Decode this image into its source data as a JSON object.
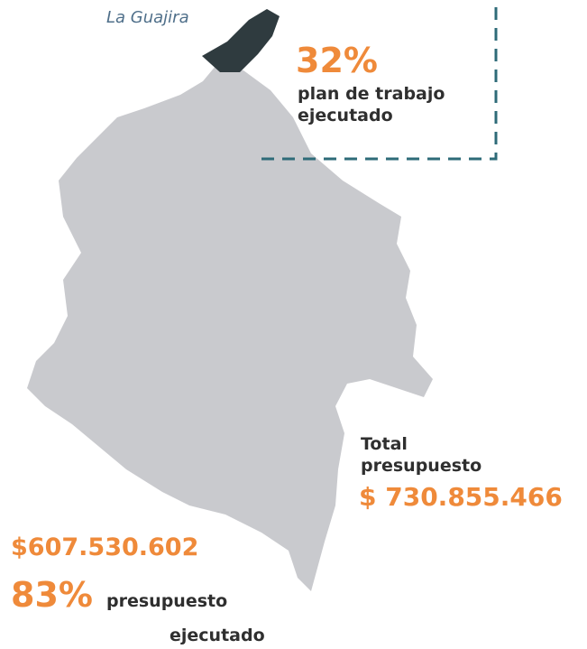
{
  "region": {
    "label": "La Guajira",
    "percent": "32%",
    "percent_caption": [
      "plan de trabajo",
      "ejecutado"
    ]
  },
  "total": {
    "label": [
      "Total",
      "presupuesto"
    ],
    "amount": "$ 730.855.466"
  },
  "executed": {
    "amount": "$607.530.602",
    "percent": "83%",
    "caption": [
      "presupuesto",
      "ejecutado"
    ]
  }
}
